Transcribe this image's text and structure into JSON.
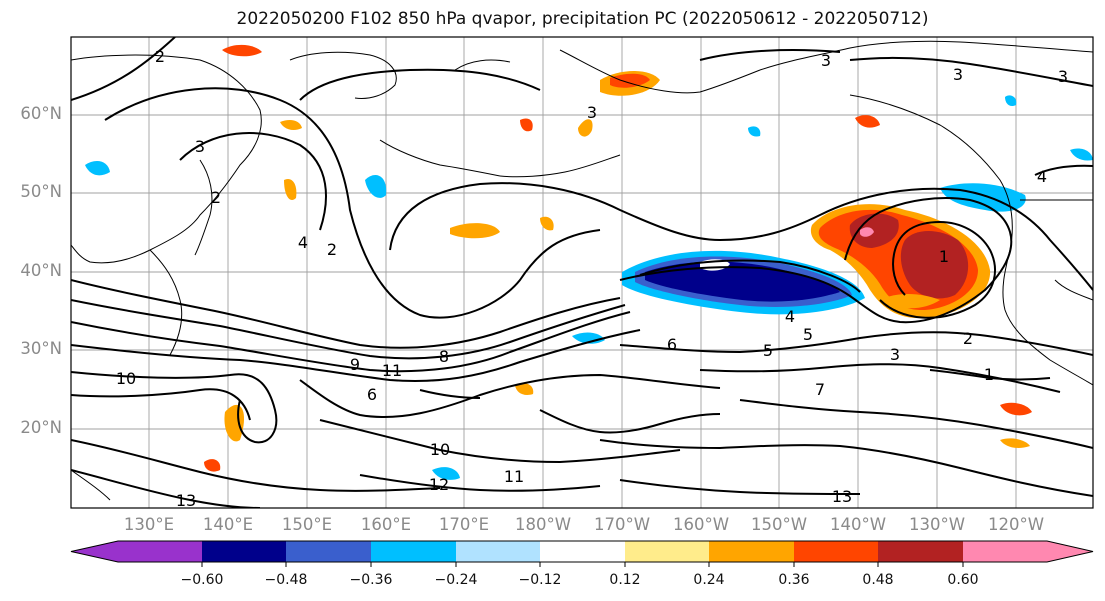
{
  "title": "2022050200 F102 850 hPa qvapor, precipitation PC (2022050612 - 2022050712)",
  "map": {
    "lat_labels": [
      "60°N",
      "50°N",
      "40°N",
      "30°N",
      "20°N"
    ],
    "lon_labels": [
      "130°E",
      "140°E",
      "150°E",
      "160°E",
      "170°E",
      "180°W",
      "170°W",
      "160°W",
      "150°W",
      "140°W",
      "130°W",
      "120°W"
    ],
    "contour_labels": [
      "2",
      "3",
      "3",
      "3",
      "3",
      "4",
      "4",
      "5",
      "1",
      "2",
      "4",
      "5",
      "6",
      "7",
      "8",
      "9",
      "10",
      "11",
      "12",
      "13",
      "2",
      "3",
      "6",
      "10",
      "11",
      "13",
      "1",
      "2",
      "3"
    ],
    "colors": {
      "ocean_bg": "#ffffff",
      "contour": "#000000",
      "coast": "#000000",
      "grid": "#a0a0a0"
    }
  },
  "colorbar": {
    "ticks": [
      "−0.60",
      "−0.48",
      "−0.36",
      "−0.24",
      "−0.12",
      "0.12",
      "0.24",
      "0.36",
      "0.48",
      "0.60"
    ],
    "colors": [
      "#9932cc",
      "#00008b",
      "#3a5fcd",
      "#00bfff",
      "#b0e2ff",
      "#ffffff",
      "#ffec8b",
      "#ffa500",
      "#ff4500",
      "#b22222",
      "#ff88b0"
    ]
  }
}
